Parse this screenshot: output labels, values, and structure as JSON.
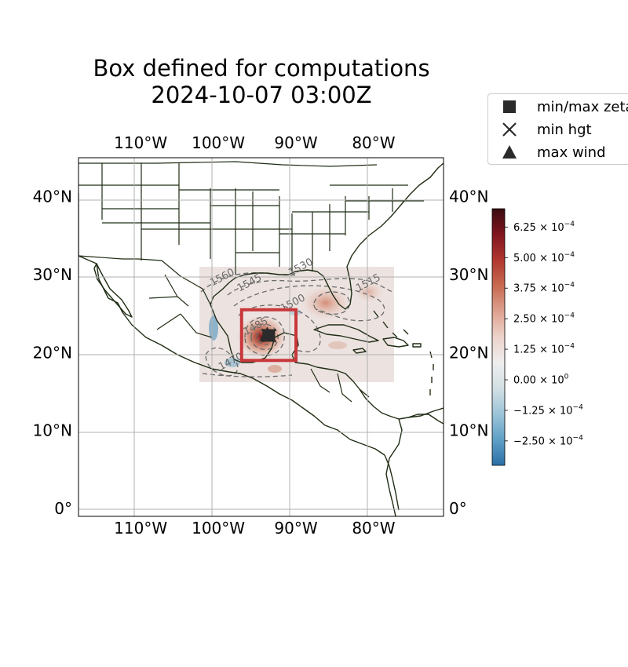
{
  "title_lines": [
    "Box defined for computations",
    "2024-10-07 03:00Z"
  ],
  "map": {
    "projection": "PlateCarree",
    "lon_range": [
      -118,
      -71
    ],
    "lat_range": [
      -1,
      45
    ],
    "lon_ticks": [
      {
        "value": -110,
        "label": "110°W"
      },
      {
        "value": -100,
        "label": "100°W"
      },
      {
        "value": -90,
        "label": "90°W"
      },
      {
        "value": -80,
        "label": "80°W"
      }
    ],
    "lat_ticks": [
      {
        "value": 0,
        "label": "0°"
      },
      {
        "value": 10,
        "label": "10°N"
      },
      {
        "value": 20,
        "label": "20°N"
      },
      {
        "value": 30,
        "label": "30°N"
      },
      {
        "value": 40,
        "label": "40°N"
      }
    ],
    "gridlines": true,
    "data_region": {
      "lon": [
        -101.5,
        -76.5
      ],
      "lat": [
        16.5,
        31.5
      ]
    },
    "computation_box": {
      "lon": [
        -97,
        -90
      ],
      "lat": [
        19,
        25.5
      ],
      "color": "#c8373a"
    },
    "marker_location": {
      "lon": -93.5,
      "lat": 22.3
    },
    "contour_labels": [
      {
        "text": "1560",
        "lon": -99.3,
        "lat": 29.3
      },
      {
        "text": "1545",
        "lon": -95.8,
        "lat": 28.6
      },
      {
        "text": "1530",
        "lon": -89.2,
        "lat": 30.6
      },
      {
        "text": "1515",
        "lon": -80.5,
        "lat": 28.6
      },
      {
        "text": "1500",
        "lon": -90.2,
        "lat": 26.0
      },
      {
        "text": "1485",
        "lon": -95.0,
        "lat": 23.0
      },
      {
        "text": "1470",
        "lon": -98.2,
        "lat": 18.5
      }
    ]
  },
  "legend": {
    "location": "upper-right-outside",
    "entries": [
      {
        "label": "min/max zeta",
        "marker": "square-marker-icon"
      },
      {
        "label": "min hgt",
        "marker": "x-marker-icon"
      },
      {
        "label": "max wind",
        "marker": "triangle-marker-icon"
      }
    ]
  },
  "colorbar": {
    "range": [
      -0.00035,
      0.0007
    ],
    "colormap": "diverging blue-white-red",
    "colors": [
      "#2b6fa6",
      "#5fa0c7",
      "#9cc4d8",
      "#d2dfe4",
      "#eeeeee",
      "#ecd3cb",
      "#dea18f",
      "#c76a50",
      "#b0372f",
      "#80151f",
      "#3a0c10"
    ],
    "ticks": [
      {
        "value": -0.00025,
        "mantissa": "−2.50",
        "exp": "−4"
      },
      {
        "value": -0.000125,
        "mantissa": "−1.25",
        "exp": "−4"
      },
      {
        "value": 0,
        "mantissa": "0.00",
        "exp": "0"
      },
      {
        "value": 0.000125,
        "mantissa": "1.25",
        "exp": "−4"
      },
      {
        "value": 0.00025,
        "mantissa": "2.50",
        "exp": "−4"
      },
      {
        "value": 0.000375,
        "mantissa": "3.75",
        "exp": "−4"
      },
      {
        "value": 0.0005,
        "mantissa": "5.00",
        "exp": "−4"
      },
      {
        "value": 0.000625,
        "mantissa": "6.25",
        "exp": "−4"
      }
    ]
  },
  "colors": {
    "coastline": "#1f2d14",
    "grid": "#b0b0b0",
    "contour": "#6a6a6a",
    "marker": "#2b2b2b"
  }
}
